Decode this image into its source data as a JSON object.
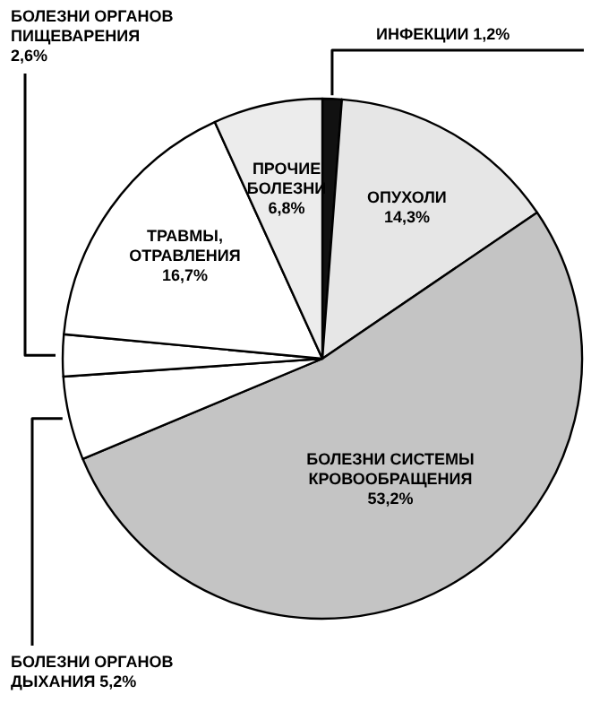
{
  "chart_data": {
    "type": "pie",
    "categories": [
      "ИНФЕКЦИИ",
      "ОПУХОЛИ",
      "БОЛЕЗНИ СИСТЕМЫ КРОВООБРАЩЕНИЯ",
      "БОЛЕЗНИ ОРГАНОВ ДЫХАНИЯ",
      "БОЛЕЗНИ ОРГАНОВ ПИЩЕВАРЕНИЯ",
      "ТРАВМЫ, ОТРАВЛЕНИЯ",
      "ПРОЧИЕ БОЛЕЗНИ"
    ],
    "values": [
      1.2,
      14.3,
      53.2,
      5.2,
      2.6,
      16.7,
      6.8
    ],
    "colors": [
      "#111111",
      "#e6e6e6",
      "#c4c4c4",
      "#ffffff",
      "#ffffff",
      "#ffffff",
      "#ececec"
    ],
    "value_labels": [
      "1,2%",
      "14,3%",
      "53,2%",
      "5,2%",
      "2,6%",
      "16,7%",
      "6,8%"
    ]
  }
}
